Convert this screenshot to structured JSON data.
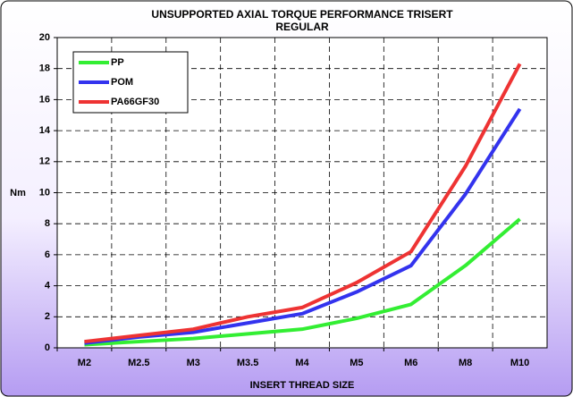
{
  "chart_data": {
    "type": "line",
    "title": [
      "UNSUPPORTED AXIAL TORQUE PERFORMANCE TRISERT",
      "REGULAR"
    ],
    "x_label": "INSERT THREAD SIZE",
    "y_label": "Nm",
    "categories": [
      "M2",
      "M2.5",
      "M3",
      "M3.5",
      "M4",
      "M5",
      "M6",
      "M8",
      "M10"
    ],
    "series": [
      {
        "name": "PP",
        "color": "#33ee33",
        "values": [
          0.2,
          0.4,
          0.6,
          0.9,
          1.2,
          1.9,
          2.8,
          5.3,
          8.3
        ]
      },
      {
        "name": "POM",
        "color": "#3333ee",
        "values": [
          0.3,
          0.7,
          1.0,
          1.6,
          2.2,
          3.6,
          5.3,
          9.9,
          15.4
        ]
      },
      {
        "name": "PA66GF30",
        "color": "#ee3333",
        "values": [
          0.4,
          0.8,
          1.2,
          2.0,
          2.6,
          4.2,
          6.2,
          11.7,
          18.3
        ]
      }
    ],
    "ylim": [
      0,
      20
    ],
    "yticks": [
      0,
      2,
      4,
      6,
      8,
      10,
      12,
      14,
      16,
      18,
      20
    ],
    "grid": true,
    "legend": "top-left"
  }
}
